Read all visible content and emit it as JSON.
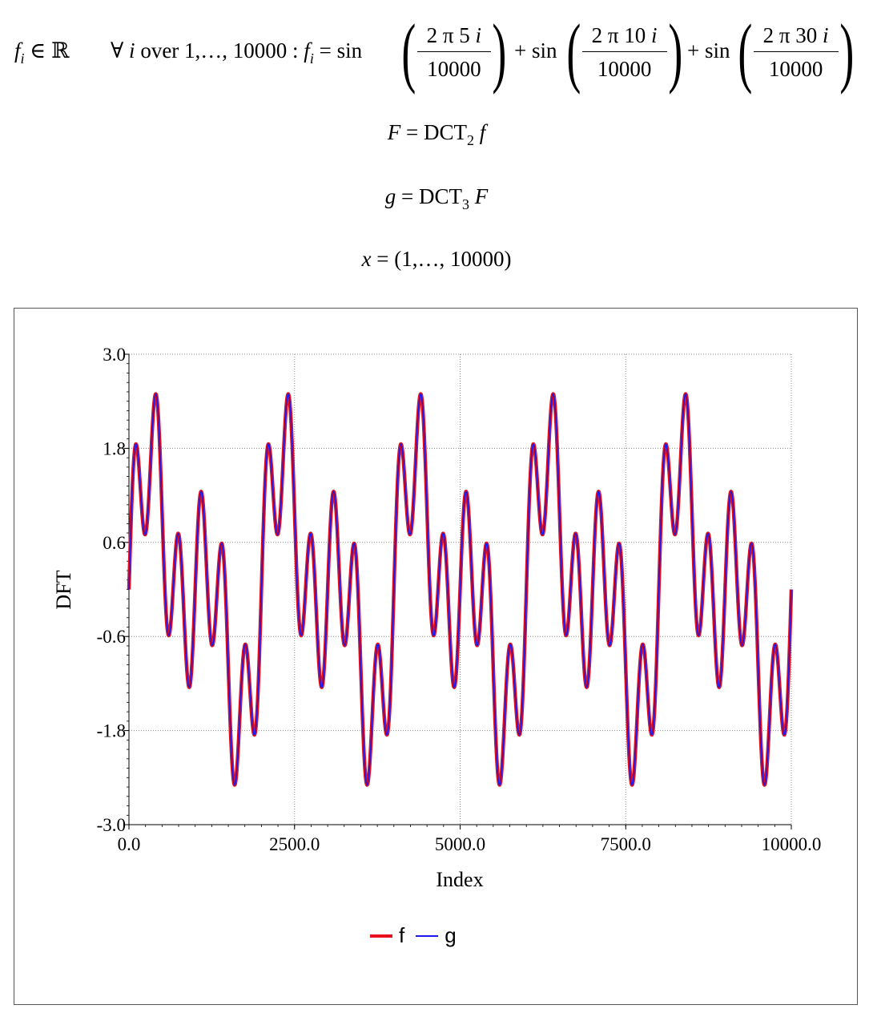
{
  "equations": {
    "line1": {
      "lhs": "f",
      "lhs_sub": "i",
      "member": "∈ ℝ",
      "quantifier": "∀",
      "var": "i",
      "over": "over 1,…, 10000 :",
      "f": "f",
      "f_sub": "i",
      "eq": "=",
      "sin": "sin",
      "plus": "+",
      "terms": [
        {
          "num": "2 π 5",
          "num_var": "i",
          "den": "10000"
        },
        {
          "num": "2 π 10",
          "num_var": "i",
          "den": "10000"
        },
        {
          "num": "2 π 30",
          "num_var": "i",
          "den": "10000"
        }
      ]
    },
    "line2": {
      "lhs": "F",
      "eq": "=",
      "op": "DCT",
      "op_sub": "2",
      "arg": "f"
    },
    "line3": {
      "lhs": "g",
      "eq": "=",
      "op": "DCT",
      "op_sub": "3",
      "arg": "F"
    },
    "line4": {
      "lhs": "x",
      "eq": "=",
      "rhs": "(1,…, 10000)"
    }
  },
  "chart_data": {
    "type": "line",
    "title": "",
    "xlabel": "Index",
    "ylabel": "DFT",
    "xlim": [
      0,
      10000
    ],
    "ylim": [
      -3.0,
      3.0
    ],
    "xticks": [
      "0.0",
      "2500.0",
      "5000.0",
      "7500.0",
      "10000.0"
    ],
    "yticks": [
      "-3.0",
      "-1.8",
      "-0.6",
      "0.6",
      "1.8",
      "3.0"
    ],
    "grid": true,
    "legend_position": "bottom-center",
    "formula": "sin(2π·5·i/10000) + sin(2π·10·i/10000) + sin(2π·30·i/10000)",
    "n_points": 10000,
    "series": [
      {
        "name": "f",
        "color": "#e8101a"
      },
      {
        "name": "g",
        "color": "#1a1aee"
      }
    ]
  }
}
